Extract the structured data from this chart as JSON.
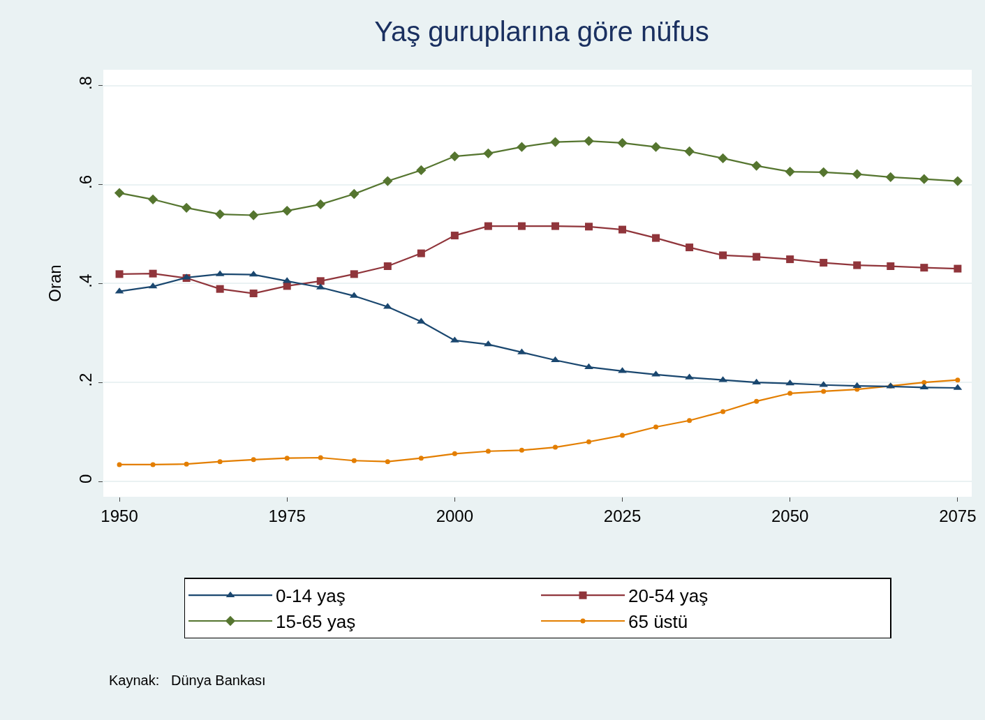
{
  "chart_data": {
    "type": "line",
    "title": "Yaş guruplarına göre nüfus",
    "ylabel": "Oran",
    "x": [
      1950,
      1955,
      1960,
      1965,
      1970,
      1975,
      1980,
      1985,
      1990,
      1995,
      2000,
      2005,
      2010,
      2015,
      2020,
      2025,
      2030,
      2035,
      2040,
      2045,
      2050,
      2055,
      2060,
      2065,
      2070,
      2075
    ],
    "series": [
      {
        "name": "0-14 yaş",
        "color": "#1a476f",
        "marker": "triangle",
        "values": [
          0.384,
          0.394,
          0.412,
          0.419,
          0.418,
          0.405,
          0.392,
          0.375,
          0.353,
          0.323,
          0.285,
          0.277,
          0.261,
          0.245,
          0.231,
          0.223,
          0.216,
          0.21,
          0.205,
          0.2,
          0.198,
          0.195,
          0.193,
          0.192,
          0.19,
          0.189
        ]
      },
      {
        "name": "20-54 yaş",
        "color": "#90353b",
        "marker": "square",
        "values": [
          0.419,
          0.42,
          0.411,
          0.389,
          0.38,
          0.395,
          0.405,
          0.419,
          0.435,
          0.461,
          0.497,
          0.516,
          0.516,
          0.516,
          0.515,
          0.509,
          0.492,
          0.473,
          0.457,
          0.454,
          0.449,
          0.442,
          0.437,
          0.435,
          0.432,
          0.43
        ]
      },
      {
        "name": "15-65 yaş",
        "color": "#55752f",
        "marker": "diamond",
        "values": [
          0.583,
          0.57,
          0.553,
          0.54,
          0.538,
          0.547,
          0.56,
          0.581,
          0.607,
          0.629,
          0.657,
          0.663,
          0.676,
          0.686,
          0.688,
          0.684,
          0.676,
          0.667,
          0.653,
          0.638,
          0.626,
          0.625,
          0.621,
          0.615,
          0.611,
          0.607
        ]
      },
      {
        "name": "65 üstü",
        "color": "#e37e00",
        "marker": "circle",
        "values": [
          0.034,
          0.034,
          0.035,
          0.04,
          0.044,
          0.047,
          0.048,
          0.042,
          0.04,
          0.047,
          0.056,
          0.061,
          0.063,
          0.069,
          0.08,
          0.093,
          0.11,
          0.123,
          0.141,
          0.162,
          0.178,
          0.182,
          0.186,
          0.193,
          0.2,
          0.205
        ]
      }
    ],
    "xlim": [
      1947.6,
      2077.1
    ],
    "xticks": [
      1950,
      1975,
      2000,
      2025,
      2050,
      2075
    ],
    "ylim": [
      -0.031,
      0.832
    ],
    "yticks": [
      {
        "value": 0,
        "label": "0"
      },
      {
        "value": 0.2,
        "label": ".2"
      },
      {
        "value": 0.4,
        "label": ".4"
      },
      {
        "value": 0.6,
        "label": ".6"
      },
      {
        "value": 0.8,
        "label": ".8"
      }
    ],
    "grid": "y",
    "legend": "bottom",
    "annotations": [
      "Kaynak:   Dünya Bankası"
    ]
  }
}
